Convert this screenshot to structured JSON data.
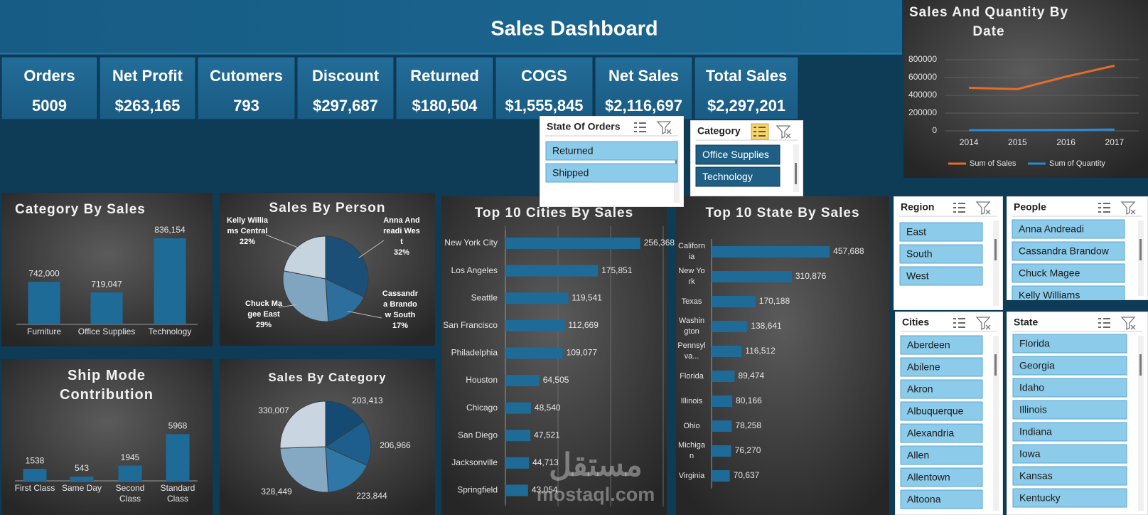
{
  "header": {
    "title": "Sales Dashboard"
  },
  "kpis": [
    {
      "label": "Orders",
      "value": "5009"
    },
    {
      "label": "Net Profit",
      "value": "$263,165"
    },
    {
      "label": "Cutomers",
      "value": "793"
    },
    {
      "label": "Discount",
      "value": "$297,687"
    },
    {
      "label": "Returned",
      "value": "$180,504"
    },
    {
      "label": "COGS",
      "value": "$1,555,845"
    },
    {
      "label": "Net Sales",
      "value": "$2,116,697"
    },
    {
      "label": "Total Sales",
      "value": "$2,297,201"
    }
  ],
  "slicers": [
    {
      "title": "State Of Orders",
      "items": [
        "Returned",
        "Shipped"
      ]
    },
    {
      "title": "Category",
      "items": [
        "Office Supplies",
        "Technology"
      ]
    },
    {
      "title": "Region",
      "items": [
        "East",
        "South",
        "West"
      ]
    },
    {
      "title": "People",
      "items": [
        "Anna Andreadi",
        "Cassandra Brandow",
        "Chuck Magee",
        "Kelly Williams"
      ]
    },
    {
      "title": "Cities",
      "items": [
        "Aberdeen",
        "Abilene",
        "Akron",
        "Albuquerque",
        "Alexandria",
        "Allen",
        "Allentown",
        "Altoona"
      ]
    },
    {
      "title": "State",
      "items": [
        "Florida",
        "Georgia",
        "Idaho",
        "Illinois",
        "Indiana",
        "Iowa",
        "Kansas",
        "Kentucky"
      ]
    }
  ],
  "chart_data": [
    {
      "type": "line",
      "title": "Sales And Quantity By Date",
      "categories": [
        "2014",
        "2015",
        "2016",
        "2017"
      ],
      "series": [
        {
          "name": "Sum of Sales",
          "color": "#e46c2a",
          "values": [
            484000,
            470000,
            610000,
            733000
          ]
        },
        {
          "name": "Sum of Quantity",
          "color": "#2a8ad4",
          "values": [
            8000,
            9000,
            11000,
            15000
          ]
        }
      ],
      "ylim": [
        0,
        800000
      ],
      "yticks": [
        0,
        200000,
        400000,
        600000,
        800000
      ],
      "grid": true,
      "legend": "bottom"
    },
    {
      "type": "bar",
      "title": "Category By Sales",
      "categories": [
        "Furniture",
        "Office Supplies",
        "Technology"
      ],
      "values": [
        742000,
        719047,
        836154
      ],
      "value_labels": [
        "742,000",
        "719,047",
        "836,154"
      ],
      "color": "#1f6b97",
      "ylim": [
        650000,
        850000
      ]
    },
    {
      "type": "pie",
      "title": "Sales By Person",
      "categories": [
        "Anna Andreadi West",
        "Cassandra Brandow South",
        "Chuck Magee East",
        "Kelly Williams Central"
      ],
      "values": [
        32,
        17,
        29,
        22
      ],
      "value_labels": [
        "32%",
        "17%",
        "29%",
        "22%"
      ],
      "colors": [
        "#1b4f78",
        "#2c6f9c",
        "#7fa5c1",
        "#c6d4e0"
      ]
    },
    {
      "type": "bar",
      "title": "Ship Mode Contribution",
      "categories": [
        "First Class",
        "Same Day",
        "Second Class",
        "Standard Class"
      ],
      "values": [
        1538,
        543,
        1945,
        5968
      ],
      "color": "#1f6b97",
      "ylim": [
        0,
        6000
      ]
    },
    {
      "type": "pie",
      "title": "Sales By Category",
      "values": [
        203413,
        206966,
        223844,
        328449,
        330007
      ],
      "value_labels": [
        "203,413",
        "206,966",
        "223,844",
        "328,449",
        "330,007"
      ],
      "colors": [
        "#154a73",
        "#1d5e8c",
        "#2f77a6",
        "#86a9c3",
        "#c9d5e0"
      ]
    },
    {
      "type": "hbar",
      "title": "Top 10 Cities By Sales",
      "categories": [
        "New York City",
        "Los Angeles",
        "Seattle",
        "San Francisco",
        "Philadelphia",
        "Houston",
        "Chicago",
        "San Diego",
        "Jacksonville",
        "Springfield"
      ],
      "values": [
        256368,
        175851,
        119541,
        112669,
        109077,
        64505,
        48540,
        47521,
        44713,
        43054
      ],
      "value_labels": [
        "256,368",
        "175,851",
        "119,541",
        "112,669",
        "109,077",
        "64,505",
        "48,540",
        "47,521",
        "44,713",
        "43,054"
      ],
      "color": "#1f6b97",
      "xlim": [
        0,
        300000
      ],
      "gridlines": [
        0,
        100000,
        200000,
        300000
      ]
    },
    {
      "type": "hbar",
      "title": "Top 10 State By Sales",
      "categories": [
        "California",
        "New York",
        "Texas",
        "Washington",
        "Pennsylva...",
        "Florida",
        "Illinois",
        "Ohio",
        "Michigan",
        "Virginia"
      ],
      "values": [
        457688,
        310876,
        170188,
        138641,
        116512,
        89474,
        80166,
        78258,
        76270,
        70637
      ],
      "value_labels": [
        "457,688",
        "310,876",
        "170,188",
        "138,641",
        "116,512",
        "89,474",
        "80,166",
        "78,258",
        "76,270",
        "70,637"
      ],
      "color": "#1f6b97",
      "xlim": [
        0,
        650000
      ]
    }
  ],
  "watermark": {
    "arabic": "مستقل",
    "latin": "mostaql.com"
  }
}
